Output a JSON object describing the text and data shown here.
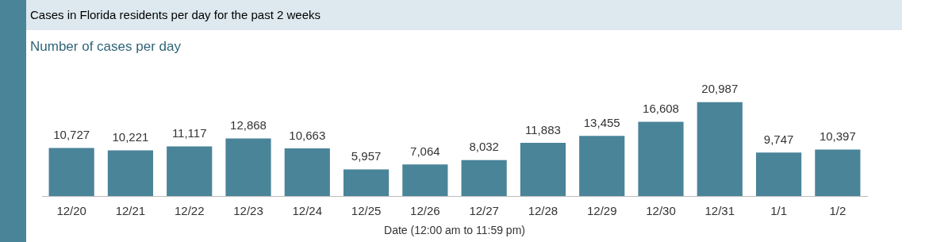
{
  "chart_data": {
    "type": "bar",
    "title": "Cases in Florida residents per day for the past 2 weeks",
    "subtitle": "Number of cases per day",
    "xlabel": "Date (12:00 am to 11:59 pm)",
    "categories": [
      "12/20",
      "12/21",
      "12/22",
      "12/23",
      "12/24",
      "12/25",
      "12/26",
      "12/27",
      "12/28",
      "12/29",
      "12/30",
      "12/31",
      "1/1",
      "1/2"
    ],
    "values": [
      10727,
      10221,
      11117,
      12868,
      10663,
      5957,
      7064,
      8032,
      11883,
      13455,
      16608,
      20987,
      9747,
      10397
    ],
    "value_labels": [
      "10,727",
      "10,221",
      "11,117",
      "12,868",
      "10,663",
      "5,957",
      "7,064",
      "8,032",
      "11,883",
      "13,455",
      "16,608",
      "20,987",
      "9,747",
      "10,397"
    ],
    "color": "#4a8499",
    "grid": false,
    "legend": false
  }
}
